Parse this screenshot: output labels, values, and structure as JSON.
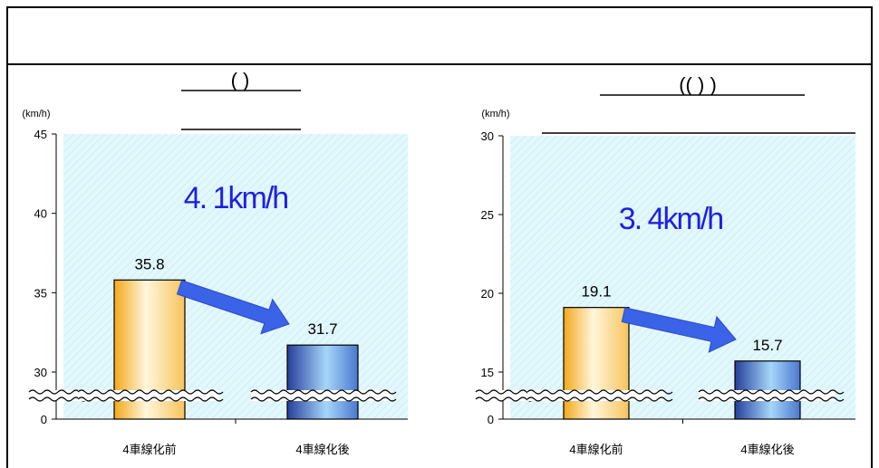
{
  "header": {
    "title": ""
  },
  "charts": [
    {
      "title_text": "(        )",
      "subtitle_text": "",
      "change_label": "4. 1km/h",
      "chart_data": {
        "type": "bar",
        "ylabel": "(km/h)",
        "categories": [
          "4車線化前",
          "4車線化後"
        ],
        "values": [
          35.8,
          31.7
        ],
        "data_labels": [
          "35.8",
          "31.7"
        ],
        "ylim": [
          0,
          45
        ],
        "yticks": [
          0,
          30,
          35,
          40,
          45
        ],
        "axis_break": true,
        "colors": [
          "#f5b53a",
          "#3a55b8"
        ]
      }
    },
    {
      "title_text": "((    )                    )",
      "subtitle_text": "",
      "change_label": "3. 4km/h",
      "chart_data": {
        "type": "bar",
        "ylabel": "(km/h)",
        "categories": [
          "4車線化前",
          "4車線化後"
        ],
        "values": [
          19.1,
          15.7
        ],
        "data_labels": [
          "19.1",
          "15.7"
        ],
        "ylim": [
          0,
          30
        ],
        "yticks": [
          0,
          15,
          20,
          25,
          30
        ],
        "axis_break": true,
        "colors": [
          "#f5b53a",
          "#3a55b8"
        ]
      }
    }
  ],
  "colors": {
    "plot_bg": "#e3f8fc",
    "arrow": "#3b63e8",
    "change_text": "#1f1fe6"
  }
}
